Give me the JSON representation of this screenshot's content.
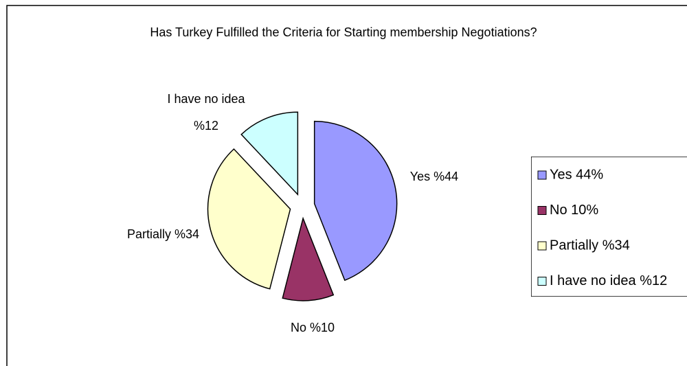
{
  "chart_data": {
    "type": "pie",
    "title": "Has Turkey Fulfilled the Criteria for Starting membership Negotiations?",
    "categories": [
      "Yes 44%",
      "No 10%",
      "Partially %34",
      "I have no idea %12"
    ],
    "values": [
      44,
      10,
      34,
      12
    ],
    "value_labels": [
      "Yes %44",
      "No %10",
      "Partially %34",
      "I have no idea %12"
    ],
    "colors": [
      "#9999ff",
      "#993366",
      "#ffffcc",
      "#ccffff"
    ],
    "legend": "right"
  }
}
